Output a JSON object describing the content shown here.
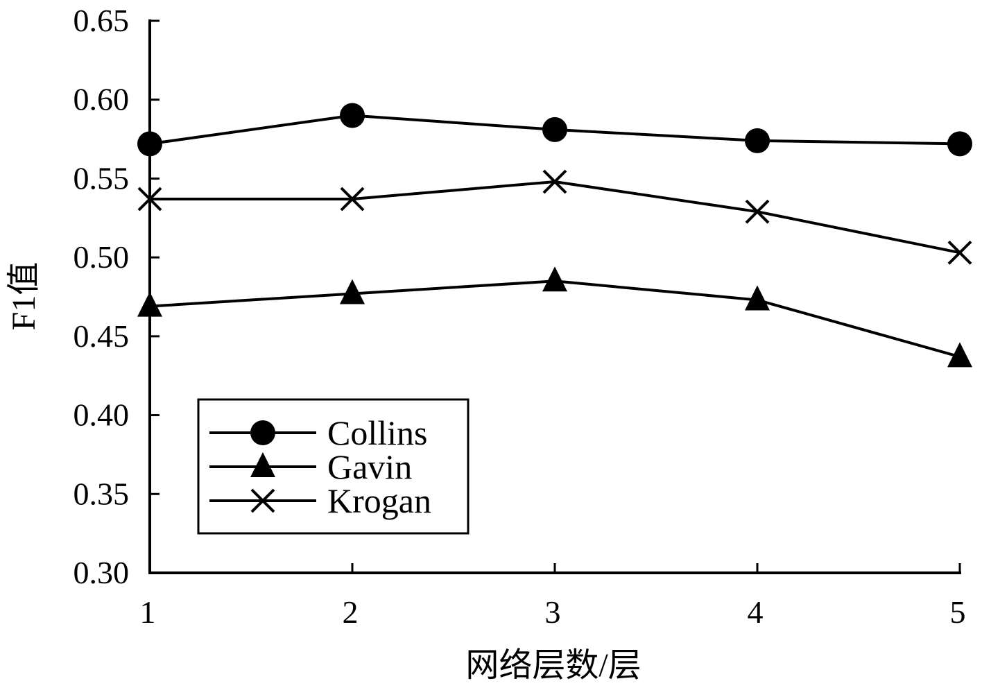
{
  "chart_data": {
    "type": "line",
    "title": "",
    "xlabel": "网络层数/层",
    "ylabel": "F1值",
    "x": [
      1,
      2,
      3,
      4,
      5
    ],
    "xlim": [
      1,
      5
    ],
    "ylim": [
      0.3,
      0.65
    ],
    "x_ticks": [
      "1",
      "2",
      "3",
      "4",
      "5"
    ],
    "y_ticks": [
      "0.30",
      "0.35",
      "0.40",
      "0.45",
      "0.50",
      "0.55",
      "0.60",
      "0.65"
    ],
    "grid": false,
    "legend_position": "bottom-left",
    "series": [
      {
        "name": "Collins",
        "marker": "circle",
        "values": [
          0.572,
          0.59,
          0.581,
          0.574,
          0.572
        ]
      },
      {
        "name": "Gavin",
        "marker": "triangle",
        "values": [
          0.469,
          0.477,
          0.485,
          0.473,
          0.437
        ]
      },
      {
        "name": "Krogan",
        "marker": "x",
        "values": [
          0.537,
          0.537,
          0.548,
          0.529,
          0.503
        ]
      }
    ],
    "colors": {
      "line": "#000000",
      "background": "#ffffff"
    }
  }
}
